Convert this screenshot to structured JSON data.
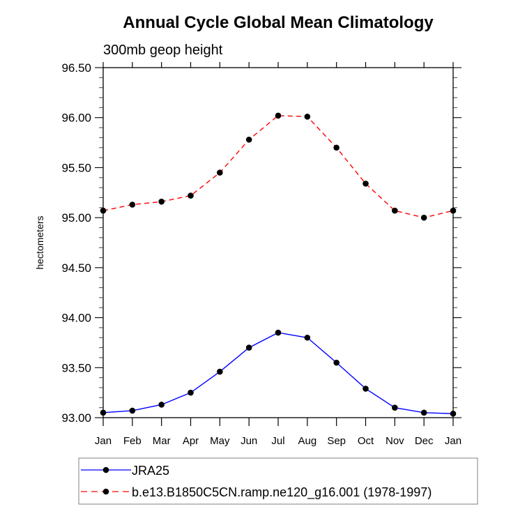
{
  "chart_data": {
    "type": "line",
    "title": "Annual Cycle Global Mean Climatology",
    "subtitle": "300mb geop height",
    "xlabel": "",
    "ylabel": "hectometers",
    "categories": [
      "Jan",
      "Feb",
      "Mar",
      "Apr",
      "May",
      "Jun",
      "Jul",
      "Aug",
      "Sep",
      "Oct",
      "Nov",
      "Dec",
      "Jan"
    ],
    "ylim": [
      93.0,
      96.5
    ],
    "yticks": [
      93.0,
      93.5,
      94.0,
      94.5,
      95.0,
      95.5,
      96.0,
      96.5
    ],
    "ytick_labels": [
      "93.00",
      "93.50",
      "94.00",
      "94.50",
      "95.00",
      "95.50",
      "96.00",
      "96.50"
    ],
    "y_minor_step": 0.1,
    "grid": false,
    "legend_position": "bottom",
    "series": [
      {
        "name": "JRA25",
        "color": "#0000ff",
        "line_style": "solid",
        "marker": "filled-circle",
        "values": [
          93.05,
          93.07,
          93.13,
          93.25,
          93.46,
          93.7,
          93.85,
          93.8,
          93.55,
          93.29,
          93.1,
          93.05,
          93.04
        ]
      },
      {
        "name": "b.e13.B1850C5CN.ramp.ne120_g16.001 (1978-1997)",
        "color": "#ff0000",
        "line_style": "dashed",
        "marker": "filled-circle",
        "values": [
          95.07,
          95.13,
          95.16,
          95.22,
          95.45,
          95.78,
          96.02,
          96.01,
          95.7,
          95.34,
          95.07,
          95.0,
          95.07
        ]
      }
    ]
  }
}
